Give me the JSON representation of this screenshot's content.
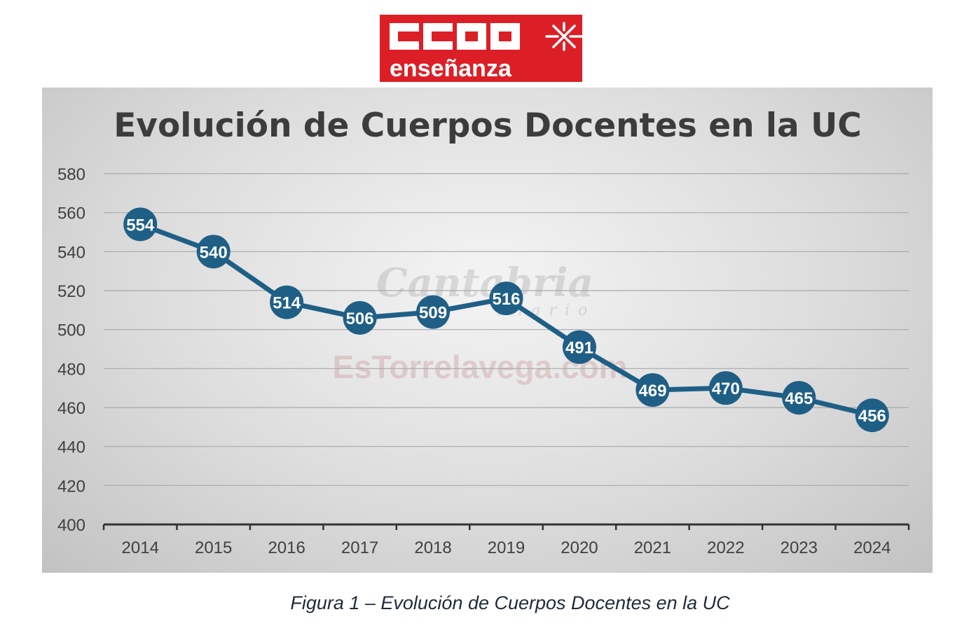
{
  "logo": {
    "brand": "CCOO",
    "subtitle": "enseñanza",
    "background_color": "#dc1f26"
  },
  "watermark": {
    "line1": "Cantabria",
    "line2": "Diario",
    "line3": "EsTorrelavega.com"
  },
  "chart_data": {
    "type": "line",
    "title": "Evolución de Cuerpos Docentes en la UC",
    "xlabel": "",
    "ylabel": "",
    "categories": [
      "2014",
      "2015",
      "2016",
      "2017",
      "2018",
      "2019",
      "2020",
      "2021",
      "2022",
      "2023",
      "2024"
    ],
    "series": [
      {
        "values": [
          554,
          540,
          514,
          506,
          509,
          516,
          491,
          469,
          470,
          465,
          456
        ]
      }
    ],
    "ylim": [
      400,
      580
    ],
    "yticks": [
      400,
      420,
      440,
      460,
      480,
      500,
      520,
      540,
      560,
      580
    ],
    "grid": true,
    "data_labels": true,
    "line_color": "#1f5f86"
  },
  "caption": "Figura 1 – Evolución de Cuerpos Docentes en la UC"
}
